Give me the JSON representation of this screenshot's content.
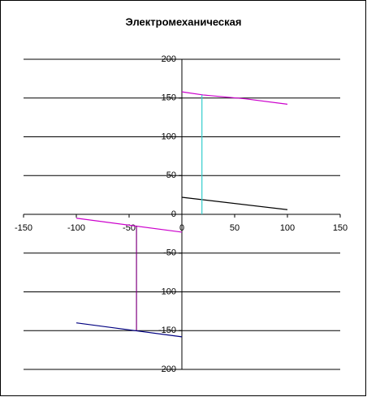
{
  "chart_data": {
    "type": "line",
    "title": "Электромеханическая",
    "xlim": [
      -150,
      150
    ],
    "xticks": [
      -150,
      -100,
      -50,
      0,
      50,
      100,
      150
    ],
    "ylim": [
      -200,
      200
    ],
    "yticks": [
      -200,
      -150,
      -100,
      -50,
      0,
      50,
      100,
      150,
      200
    ],
    "grid": true,
    "series": [
      {
        "color": "#cc00cc",
        "x": [
          0,
          20,
          60,
          100
        ],
        "values": [
          158,
          154,
          149,
          142
        ]
      },
      {
        "color": "#000000",
        "x": [
          0,
          100
        ],
        "values": [
          22,
          6
        ]
      },
      {
        "color": "#33cccc",
        "x": [
          19,
          19
        ],
        "values": [
          0,
          154
        ]
      },
      {
        "color": "#cc00cc",
        "x": [
          -100,
          0
        ],
        "values": [
          -5,
          -23
        ]
      },
      {
        "color": "#800080",
        "x": [
          -43,
          -43
        ],
        "values": [
          -15,
          -150
        ]
      },
      {
        "color": "#000080",
        "x": [
          -100,
          0
        ],
        "values": [
          -140,
          -158
        ]
      }
    ]
  }
}
